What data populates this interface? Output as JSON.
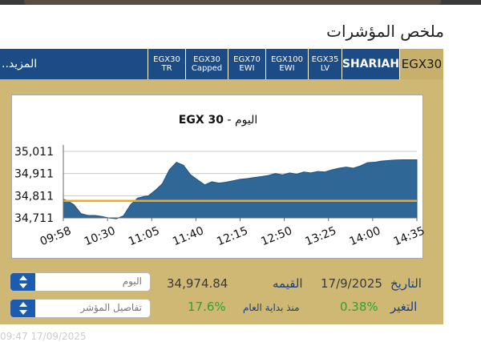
{
  "section_title": "ملخص المؤشرات",
  "tabs": [
    {
      "label_lines": [
        "EGX30"
      ],
      "active": true
    },
    {
      "label_lines": [
        "SHARIAH"
      ]
    },
    {
      "label_lines": [
        "EGX35",
        "LV"
      ]
    },
    {
      "label_lines": [
        "EGX100",
        "EWI"
      ]
    },
    {
      "label_lines": [
        "EGX70",
        "EWI"
      ]
    },
    {
      "label_lines": [
        "EGX30",
        "Capped"
      ]
    },
    {
      "label_lines": [
        "EGX30",
        "TR"
      ]
    }
  ],
  "more_label": "المزيد..",
  "chart_title_index": "EGX 30",
  "chart_title_rest": " - اليوم",
  "chart_data": {
    "type": "area",
    "title": "EGX 30 - اليوم",
    "x_ticks": [
      "09:58",
      "10:30",
      "11:05",
      "11:40",
      "12:15",
      "12:50",
      "13:25",
      "14:00",
      "14:35"
    ],
    "y_ticks": [
      "35,011",
      "34,911",
      "34,811",
      "34,711"
    ],
    "ylim": [
      34711,
      35011
    ],
    "reference_value": 34788,
    "reference_color": "#f0a81e",
    "fill_color": "#2f6797",
    "x": [
      0,
      1,
      3,
      5,
      7,
      9,
      11,
      13,
      15,
      17,
      19,
      21,
      23,
      24,
      26,
      28,
      30,
      32,
      34,
      36,
      38,
      40,
      42,
      44,
      46,
      48,
      50,
      52,
      54,
      56,
      58,
      60,
      62,
      64,
      66,
      68,
      70,
      72,
      74,
      76,
      78,
      80,
      82,
      84,
      86,
      88,
      90,
      92,
      94,
      96,
      98,
      100
    ],
    "values": [
      34795,
      34790,
      34770,
      34730,
      34722,
      34722,
      34717,
      34710,
      34707,
      34720,
      34770,
      34800,
      34808,
      34810,
      34835,
      34865,
      34928,
      34962,
      34948,
      34905,
      34882,
      34860,
      34874,
      34868,
      34872,
      34878,
      34885,
      34888,
      34893,
      34897,
      34902,
      34911,
      34905,
      34914,
      34908,
      34918,
      34914,
      34920,
      34918,
      34928,
      34935,
      34940,
      34935,
      34945,
      34960,
      34962,
      34967,
      34970,
      34972,
      34973,
      34973,
      34973
    ]
  },
  "info": {
    "date_label": "التاريخ",
    "date_value": "17/9/2025",
    "value_label": "القيمه",
    "value_number": "34,974.84",
    "change_label": "التغير",
    "change_value": "0.38%",
    "ytd_label": "منذ بداية العام",
    "ytd_value": "17.6%"
  },
  "select_period": "اليوم",
  "select_details": "تفاصيل المؤشر",
  "footer_text": "09:47 17/09/2025"
}
